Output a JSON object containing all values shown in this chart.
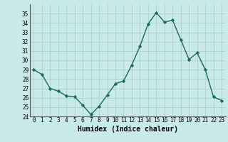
{
  "x": [
    0,
    1,
    2,
    3,
    4,
    5,
    6,
    7,
    8,
    9,
    10,
    11,
    12,
    13,
    14,
    15,
    16,
    17,
    18,
    19,
    20,
    21,
    22,
    23
  ],
  "y": [
    29,
    28.5,
    27,
    26.7,
    26.2,
    26.1,
    25.2,
    24.2,
    25.1,
    26.3,
    27.5,
    27.8,
    29.5,
    31.5,
    33.9,
    35.1,
    34.1,
    34.3,
    32.2,
    30.1,
    30.8,
    29.0,
    26.1,
    25.7
  ],
  "line_color": "#1a6b5a",
  "marker": "D",
  "marker_size": 2.2,
  "bg_color": "#c8eae8",
  "grid_color": "#a8ccc8",
  "xlabel": "Humidex (Indice chaleur)",
  "ylim": [
    24,
    36
  ],
  "xlim": [
    -0.5,
    23.5
  ],
  "yticks": [
    24,
    25,
    26,
    27,
    28,
    29,
    30,
    31,
    32,
    33,
    34,
    35
  ],
  "xticks": [
    0,
    1,
    2,
    3,
    4,
    5,
    6,
    7,
    8,
    9,
    10,
    11,
    12,
    13,
    14,
    15,
    16,
    17,
    18,
    19,
    20,
    21,
    22,
    23
  ],
  "tick_fontsize": 5.5,
  "xlabel_fontsize": 7,
  "line_width": 1.0
}
